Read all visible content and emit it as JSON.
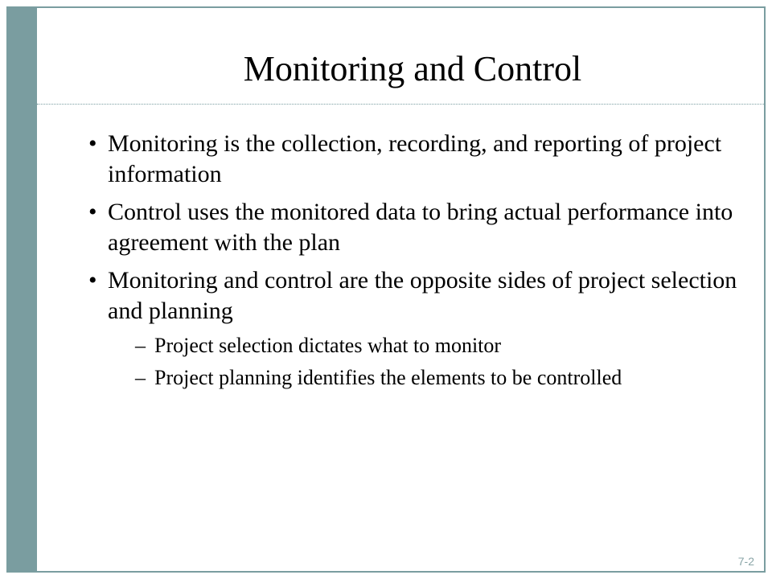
{
  "title": "Monitoring and Control",
  "bullets": [
    {
      "text": "Monitoring is the collection, recording, and reporting of project information",
      "subs": []
    },
    {
      "text": "Control uses the monitored data to bring actual performance into agreement with the plan",
      "subs": []
    },
    {
      "text": "Monitoring and control are the opposite sides of project selection and planning",
      "subs": [
        "Project selection dictates what to monitor",
        "Project planning identifies the elements to be controlled"
      ]
    }
  ],
  "page_number": "7-2",
  "colors": {
    "accent": "#7a9da0",
    "text": "#000000",
    "page_num": "#8aa5a7",
    "background": "#ffffff"
  }
}
